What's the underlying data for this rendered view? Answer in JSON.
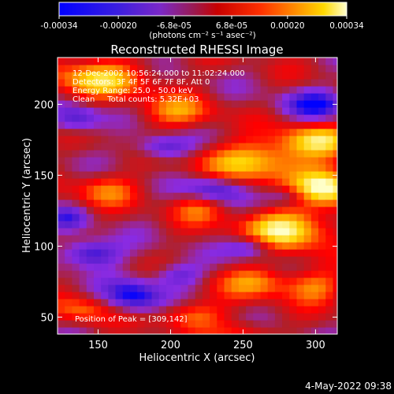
{
  "colorbar": {
    "ticks": [
      "-0.00034",
      "-0.00020",
      "-6.8e-05",
      "6.8e-05",
      "0.00020",
      "0.00034"
    ],
    "unit_label": "(photons cm⁻² s⁻¹ asec⁻²)",
    "range": [
      -0.00034,
      0.00034
    ]
  },
  "chart_data": {
    "type": "heatmap",
    "title": "Reconstructed RHESSI Image",
    "xlabel": "Heliocentric X (arcsec)",
    "ylabel": "Heliocentric Y (arcsec)",
    "xlim": [
      122,
      315
    ],
    "ylim": [
      38,
      233
    ],
    "x_ticks": [
      "150",
      "200",
      "250",
      "300"
    ],
    "y_ticks": [
      "50",
      "100",
      "150",
      "200"
    ],
    "x_tick_values": [
      150,
      200,
      250,
      300
    ],
    "y_tick_values": [
      50,
      100,
      150,
      200
    ],
    "annotations": [
      "12-Dec-2002 10:56:24.000 to 11:02:24.000",
      "Detectors: 3F 4F 5F 6F 7F 8F, Att 0",
      "Energy Range: 25.0 - 50.0 keV",
      "Clean     Total counts: 5.32E+03"
    ],
    "peak_label": "Position of Peak = [309,142]",
    "peak": {
      "x": 309,
      "y": 142
    },
    "grid": false,
    "colorscale": [
      "#0000ff",
      "#5a1fd0",
      "#8a2be2",
      "#b0202a",
      "#ff0000",
      "#ff7800",
      "#ffd400",
      "#ffffc8"
    ],
    "blobs": [
      {
        "x": 309,
        "y": 142,
        "sx": 16,
        "sy": 9,
        "a": 1.0
      },
      {
        "x": 280,
        "y": 112,
        "sx": 22,
        "sy": 10,
        "a": 0.95
      },
      {
        "x": 260,
        "y": 160,
        "sx": 28,
        "sy": 10,
        "a": 0.75
      },
      {
        "x": 300,
        "y": 175,
        "sx": 18,
        "sy": 8,
        "a": 0.7
      },
      {
        "x": 150,
        "y": 218,
        "sx": 25,
        "sy": 10,
        "a": 0.7
      },
      {
        "x": 205,
        "y": 195,
        "sx": 18,
        "sy": 8,
        "a": 0.5
      },
      {
        "x": 155,
        "y": 140,
        "sx": 16,
        "sy": 8,
        "a": 0.45
      },
      {
        "x": 220,
        "y": 128,
        "sx": 14,
        "sy": 8,
        "a": 0.45
      },
      {
        "x": 260,
        "y": 75,
        "sx": 18,
        "sy": 8,
        "a": 0.55
      },
      {
        "x": 300,
        "y": 72,
        "sx": 14,
        "sy": 8,
        "a": 0.5
      },
      {
        "x": 215,
        "y": 52,
        "sx": 16,
        "sy": 7,
        "a": 0.5
      },
      {
        "x": 140,
        "y": 55,
        "sx": 14,
        "sy": 7,
        "a": 0.45
      },
      {
        "x": 250,
        "y": 40,
        "sx": 14,
        "sy": 6,
        "a": 0.35
      },
      {
        "x": 145,
        "y": 95,
        "sx": 14,
        "sy": 7,
        "a": -0.7
      },
      {
        "x": 175,
        "y": 65,
        "sx": 14,
        "sy": 8,
        "a": -0.7
      },
      {
        "x": 230,
        "y": 140,
        "sx": 14,
        "sy": 7,
        "a": -0.65
      },
      {
        "x": 195,
        "y": 170,
        "sx": 14,
        "sy": 6,
        "a": -0.55
      },
      {
        "x": 135,
        "y": 190,
        "sx": 12,
        "sy": 7,
        "a": -0.55
      },
      {
        "x": 255,
        "y": 100,
        "sx": 12,
        "sy": 6,
        "a": -0.55
      },
      {
        "x": 300,
        "y": 200,
        "sx": 16,
        "sy": 7,
        "a": -0.6
      },
      {
        "x": 205,
        "y": 80,
        "sx": 12,
        "sy": 6,
        "a": -0.45
      },
      {
        "x": 280,
        "y": 135,
        "sx": 10,
        "sy": 5,
        "a": -0.4
      },
      {
        "x": 130,
        "y": 120,
        "sx": 10,
        "sy": 6,
        "a": -0.4
      }
    ]
  },
  "timestamp": "4-May-2022 09:38"
}
